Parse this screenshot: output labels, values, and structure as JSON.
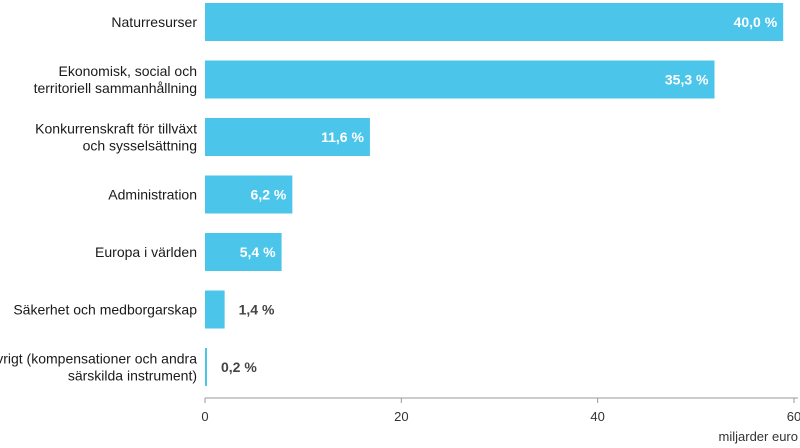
{
  "chart_data": {
    "type": "bar",
    "orientation": "horizontal",
    "categories": [
      [
        "Naturresurser"
      ],
      [
        "Ekonomisk, social och",
        "territoriell sammanhållning"
      ],
      [
        "Konkurrenskraft för tillväxt",
        "och sysselsättning"
      ],
      [
        "Administration"
      ],
      [
        "Europa i världen"
      ],
      [
        "Säkerhet och medborgarskap"
      ],
      [
        "Övrigt (kompensationer och andra",
        "särskilda instrument)"
      ]
    ],
    "values": [
      58.9,
      51.9,
      16.8,
      8.9,
      7.8,
      2.0,
      0.2
    ],
    "data_labels": [
      "40,0 %",
      "35,3 %",
      "11,6 %",
      "6,2 %",
      "5,4 %",
      "1,4 %",
      "0,2 %"
    ],
    "xlabel": "miljarder euro",
    "xlim": [
      0,
      60
    ],
    "xticks": [
      0,
      20,
      40,
      60
    ],
    "grid": false,
    "bar_color": "#4bc5ea"
  }
}
